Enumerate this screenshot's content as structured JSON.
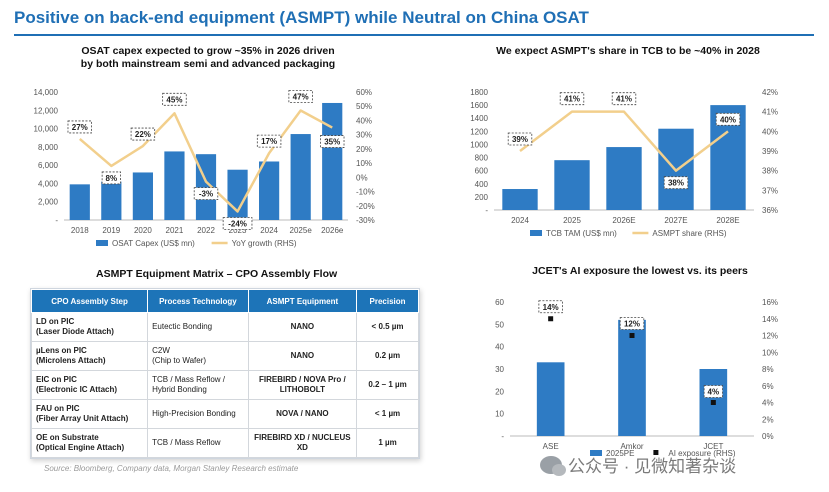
{
  "page": {
    "title": "Positive on back-end equipment (ASMPT) while Neutral on China OSAT",
    "source": "Source:  Bloomberg, Company data, Morgan Stanley Research estimate",
    "watermark": "公众号 · 见微知著杂谈",
    "matrix_title": "ASMPT Equipment Matrix – CPO Assembly Flow"
  },
  "colors": {
    "bar": "#2e7bc4",
    "line": "#f2cf8c",
    "header": "#1d74b8",
    "title": "#1f6fb5"
  },
  "chart_data": [
    {
      "type": "bar",
      "title": "OSAT capex expected to grow ~35% in 2026 driven",
      "subtitle": "by both mainstream semi and advanced packaging",
      "categories": [
        "2018",
        "2019",
        "2020",
        "2021",
        "2022",
        "2023",
        "2024",
        "2025e",
        "2026e"
      ],
      "series": [
        {
          "name": "OSAT Capex (US$ mn)",
          "axis": "left",
          "kind": "bar",
          "values": [
            3900,
            4200,
            5200,
            7500,
            7200,
            5500,
            6400,
            9400,
            12800
          ]
        },
        {
          "name": "YoY growth (RHS)",
          "axis": "right",
          "kind": "line",
          "values": [
            27,
            8,
            22,
            45,
            -3,
            -24,
            17,
            47,
            35
          ]
        }
      ],
      "data_labels": [
        "27%",
        "8%",
        "22%",
        "45%",
        "-3%",
        "-24%",
        "17%",
        "47%",
        "35%"
      ],
      "ylim": [
        0,
        14000
      ],
      "yticks": [
        "-",
        "2,000",
        "4,000",
        "6,000",
        "8,000",
        "10,000",
        "12,000",
        "14,000"
      ],
      "y2lim": [
        -30,
        60
      ],
      "y2ticks": [
        "-30%",
        "-20%",
        "-10%",
        "0%",
        "10%",
        "20%",
        "30%",
        "40%",
        "50%",
        "60%"
      ],
      "legend": "bottom"
    },
    {
      "type": "bar",
      "title": "We expect ASMPT's share in TCB to be ~40% in 2028",
      "categories": [
        "2024",
        "2025",
        "2026E",
        "2027E",
        "2028E"
      ],
      "series": [
        {
          "name": "TCB TAM (US$ mn)",
          "axis": "left",
          "kind": "bar",
          "values": [
            320,
            760,
            960,
            1240,
            1600
          ]
        },
        {
          "name": "ASMPT share (RHS)",
          "axis": "right",
          "kind": "line",
          "values": [
            39,
            41,
            41,
            38,
            40
          ]
        }
      ],
      "data_labels": [
        "39%",
        "41%",
        "41%",
        "38%",
        "40%"
      ],
      "ylim": [
        0,
        1800
      ],
      "yticks": [
        "-",
        "200",
        "400",
        "600",
        "800",
        "1000",
        "1200",
        "1400",
        "1600",
        "1800"
      ],
      "y2lim": [
        36,
        42
      ],
      "y2ticks": [
        "36%",
        "37%",
        "38%",
        "39%",
        "40%",
        "41%",
        "42%"
      ],
      "legend": "bottom"
    },
    {
      "type": "bar",
      "title": "JCET's AI exposure the lowest vs. its peers",
      "categories": [
        "ASE",
        "Amkor",
        "JCET"
      ],
      "series": [
        {
          "name": "2025PE",
          "axis": "left",
          "kind": "bar",
          "values": [
            33,
            52,
            30
          ]
        },
        {
          "name": "AI exposure (RHS)",
          "axis": "right",
          "kind": "point",
          "values": [
            14,
            12,
            4
          ]
        }
      ],
      "data_labels": [
        "14%",
        "12%",
        "4%"
      ],
      "ylim": [
        0,
        60
      ],
      "yticks": [
        "-",
        "10",
        "20",
        "30",
        "40",
        "50",
        "60"
      ],
      "y2lim": [
        0,
        16
      ],
      "y2ticks": [
        "0%",
        "2%",
        "4%",
        "6%",
        "8%",
        "10%",
        "12%",
        "14%",
        "16%"
      ],
      "legend": "bottom"
    },
    {
      "type": "table",
      "headers": [
        "CPO Assembly Step",
        "Process Technology",
        "ASMPT Equipment",
        "Precision"
      ],
      "rows": [
        {
          "step1": "LD on PIC",
          "step2": "(Laser Diode Attach)",
          "tech1": "Eutectic Bonding",
          "tech2": "",
          "equip1": "NANO",
          "equip2": "",
          "precision": "< 0.5 µm"
        },
        {
          "step1": "µLens on PIC",
          "step2": "(Microlens Attach)",
          "tech1": "C2W",
          "tech2": "(Chip to Wafer)",
          "equip1": "NANO",
          "equip2": "",
          "precision": "0.2 µm"
        },
        {
          "step1": "EIC on PIC",
          "step2": "(Electronic IC Attach)",
          "tech1": "TCB / Mass Reflow /",
          "tech2": "Hybrid Bonding",
          "equip1": "FIREBIRD / NOVA Pro /",
          "equip2": "LITHOBOLT",
          "precision": "0.2 – 1 µm"
        },
        {
          "step1": "FAU on PIC",
          "step2": "(Fiber Array Unit Attach)",
          "tech1": "High-Precision Bonding",
          "tech2": "",
          "equip1": "NOVA / NANO",
          "equip2": "",
          "precision": "< 1 µm"
        },
        {
          "step1": "OE on Substrate",
          "step2": "(Optical Engine Attach)",
          "tech1": "TCB / Mass Reflow",
          "tech2": "",
          "equip1": "FIREBIRD XD / NUCLEUS XD",
          "equip2": "",
          "precision": "1 µm"
        }
      ]
    }
  ]
}
